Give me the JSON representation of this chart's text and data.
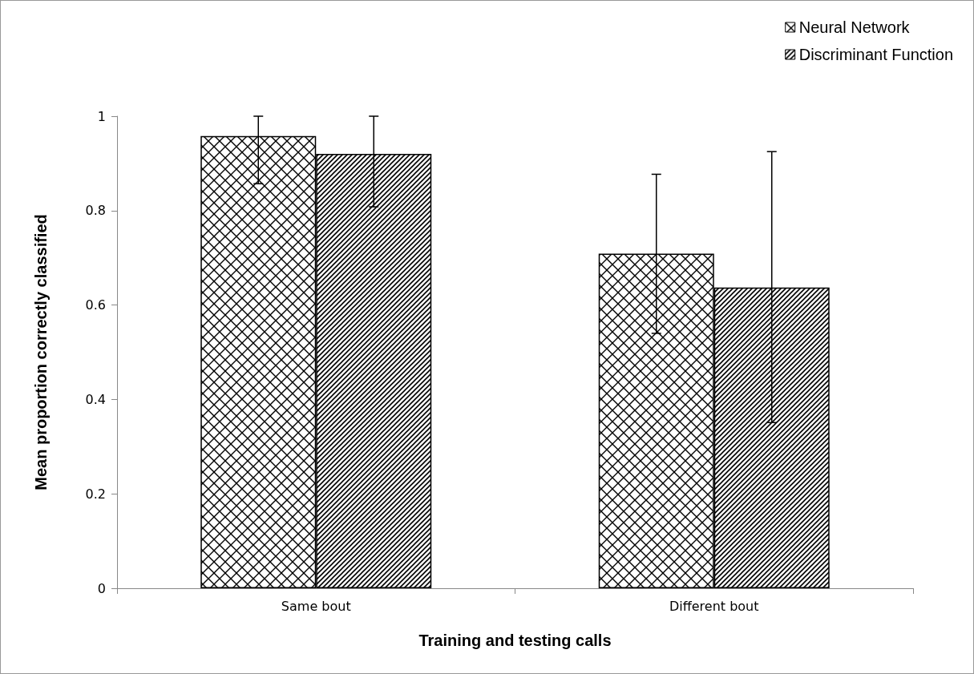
{
  "chart_data": {
    "type": "bar",
    "xlabel": "Training and testing calls",
    "ylabel": "Mean proportion correctly classified",
    "categories": [
      "Same bout",
      "Different bout"
    ],
    "series": [
      {
        "name": "Neural Network",
        "color": "#000000",
        "values": [
          0.958,
          0.709
        ],
        "errors": [
          [
            0.857,
            1.0
          ],
          [
            0.54,
            0.877
          ]
        ]
      },
      {
        "name": "Discriminant Function",
        "color": "#000000",
        "values": [
          0.92,
          0.637
        ],
        "errors": [
          [
            0.808,
            1.0
          ],
          [
            0.351,
            0.925
          ]
        ]
      }
    ],
    "ylim": [
      0,
      1
    ],
    "yticks": [
      0,
      0.2,
      0.4,
      0.6,
      0.8,
      1
    ],
    "grid": false,
    "legend": "top right"
  }
}
